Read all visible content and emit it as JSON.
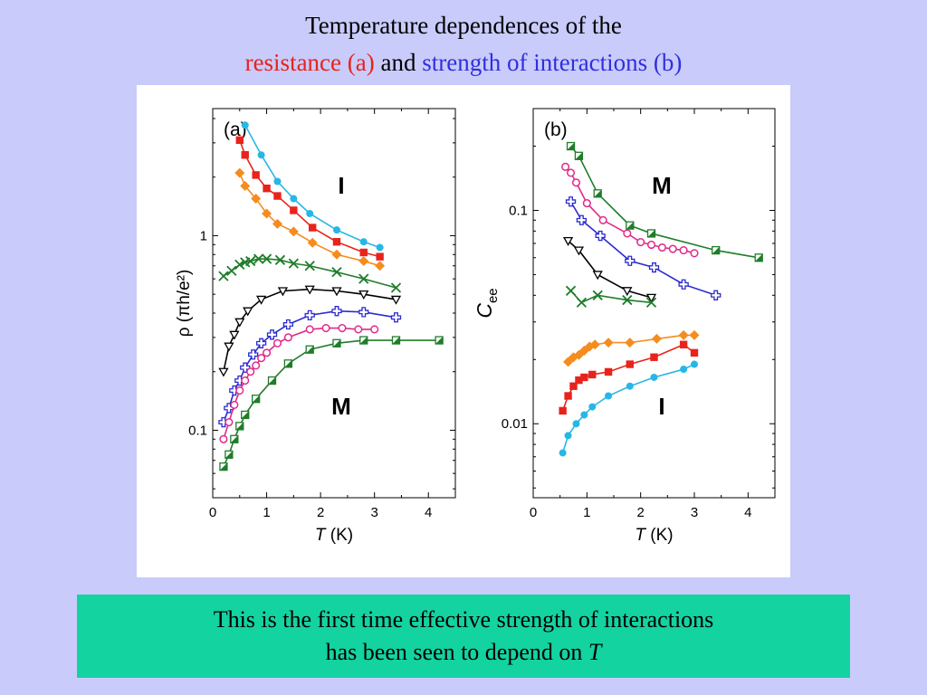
{
  "header": {
    "line1": "Temperature dependences of the",
    "red_part": "resistance (a)",
    "mid_part": "and",
    "blue_part": "strength of interactions (b)"
  },
  "note": {
    "line1": "This is the first time effective strength of interactions",
    "line2_prefix": "has been seen to depend on",
    "line2_var": "T"
  },
  "chart_data": [
    {
      "type": "line",
      "panel_label": "(a)",
      "ylabel": "ρ (πh/e²)",
      "xlabel": "T (K)",
      "yscale": "log",
      "xlim": [
        0,
        4.5
      ],
      "ylim": [
        0.045,
        4.5
      ],
      "xticks": [
        0,
        1,
        2,
        3,
        4
      ],
      "yticks": [
        {
          "value": 0.1,
          "label": "0.1"
        },
        {
          "value": 1,
          "label": "1"
        }
      ],
      "annotations": [
        "I",
        "M"
      ],
      "series": [
        {
          "color": "#27b7e6",
          "marker": "circle",
          "x": [
            0.6,
            0.9,
            1.2,
            1.5,
            1.8,
            2.3,
            2.8,
            3.1
          ],
          "y": [
            3.7,
            2.6,
            1.9,
            1.55,
            1.3,
            1.07,
            0.93,
            0.87
          ]
        },
        {
          "color": "#e8231b",
          "marker": "square",
          "x": [
            0.5,
            0.6,
            0.8,
            1.0,
            1.2,
            1.5,
            1.85,
            2.3,
            2.8,
            3.1
          ],
          "y": [
            3.1,
            2.6,
            2.05,
            1.75,
            1.6,
            1.35,
            1.1,
            0.93,
            0.82,
            0.78
          ]
        },
        {
          "color": "#f58c1e",
          "marker": "diamond",
          "x": [
            0.5,
            0.6,
            0.8,
            1.0,
            1.2,
            1.5,
            1.85,
            2.3,
            2.8,
            3.1
          ],
          "y": [
            2.1,
            1.8,
            1.55,
            1.3,
            1.15,
            1.05,
            0.92,
            0.8,
            0.74,
            0.7
          ]
        },
        {
          "color": "#1f7d2a",
          "marker": "x",
          "x": [
            0.2,
            0.35,
            0.5,
            0.6,
            0.7,
            0.85,
            1.0,
            1.25,
            1.5,
            1.8,
            2.3,
            2.8,
            3.4
          ],
          "y": [
            0.62,
            0.66,
            0.71,
            0.73,
            0.74,
            0.76,
            0.76,
            0.75,
            0.72,
            0.7,
            0.65,
            0.6,
            0.54
          ]
        },
        {
          "color": "#000000",
          "marker": "triangle",
          "x": [
            0.2,
            0.3,
            0.4,
            0.5,
            0.65,
            0.9,
            1.3,
            1.8,
            2.3,
            2.8,
            3.4
          ],
          "y": [
            0.2,
            0.27,
            0.31,
            0.36,
            0.41,
            0.47,
            0.52,
            0.53,
            0.52,
            0.5,
            0.47
          ]
        },
        {
          "color": "#2b2bd0",
          "marker": "cross",
          "x": [
            0.2,
            0.3,
            0.4,
            0.5,
            0.6,
            0.75,
            0.9,
            1.1,
            1.4,
            1.8,
            2.3,
            2.8,
            3.4
          ],
          "y": [
            0.11,
            0.13,
            0.16,
            0.18,
            0.21,
            0.245,
            0.28,
            0.31,
            0.35,
            0.39,
            0.41,
            0.405,
            0.38
          ]
        },
        {
          "color": "#e02a8a",
          "marker": "open-circle",
          "x": [
            0.2,
            0.3,
            0.4,
            0.5,
            0.6,
            0.7,
            0.8,
            0.9,
            1.0,
            1.2,
            1.4,
            1.8,
            2.1,
            2.4,
            2.7,
            3.0
          ],
          "y": [
            0.09,
            0.11,
            0.135,
            0.16,
            0.18,
            0.2,
            0.215,
            0.235,
            0.25,
            0.28,
            0.3,
            0.33,
            0.335,
            0.335,
            0.33,
            0.33
          ]
        },
        {
          "color": "#1f7d2a",
          "marker": "half-square",
          "x": [
            0.2,
            0.3,
            0.4,
            0.5,
            0.6,
            0.8,
            1.1,
            1.4,
            1.8,
            2.3,
            2.8,
            3.4,
            4.2
          ],
          "y": [
            0.065,
            0.075,
            0.09,
            0.105,
            0.12,
            0.145,
            0.18,
            0.22,
            0.26,
            0.28,
            0.29,
            0.29,
            0.29
          ]
        }
      ]
    },
    {
      "type": "line",
      "panel_label": "(b)",
      "ylabel": "Cee",
      "xlabel": "T (K)",
      "yscale": "log",
      "xlim": [
        0,
        4.5
      ],
      "ylim": [
        0.0045,
        0.3
      ],
      "xticks": [
        0,
        1,
        2,
        3,
        4
      ],
      "yticks": [
        {
          "value": 0.01,
          "label": "0.01"
        },
        {
          "value": 0.1,
          "label": "0.1"
        }
      ],
      "annotations": [
        "M",
        "I"
      ],
      "series": [
        {
          "color": "#1f7d2a",
          "marker": "half-square",
          "x": [
            0.7,
            0.85,
            1.2,
            1.8,
            2.2,
            3.4,
            4.2
          ],
          "y": [
            0.2,
            0.18,
            0.12,
            0.085,
            0.078,
            0.065,
            0.06
          ]
        },
        {
          "color": "#e02a8a",
          "marker": "open-circle",
          "x": [
            0.6,
            0.7,
            0.8,
            1.0,
            1.3,
            1.75,
            2.0,
            2.2,
            2.4,
            2.6,
            2.8,
            3.0
          ],
          "y": [
            0.16,
            0.15,
            0.135,
            0.108,
            0.09,
            0.078,
            0.071,
            0.069,
            0.067,
            0.066,
            0.065,
            0.063
          ]
        },
        {
          "color": "#2b2bd0",
          "marker": "cross",
          "x": [
            0.7,
            0.9,
            1.25,
            1.8,
            2.25,
            2.8,
            3.4
          ],
          "y": [
            0.11,
            0.09,
            0.076,
            0.058,
            0.054,
            0.045,
            0.04
          ]
        },
        {
          "color": "#000000",
          "marker": "triangle",
          "x": [
            0.65,
            0.85,
            1.2,
            1.75,
            2.2
          ],
          "y": [
            0.072,
            0.065,
            0.05,
            0.042,
            0.039
          ]
        },
        {
          "color": "#1f7d2a",
          "marker": "x",
          "x": [
            0.7,
            0.9,
            1.2,
            1.75,
            2.2
          ],
          "y": [
            0.042,
            0.037,
            0.04,
            0.038,
            0.037
          ]
        },
        {
          "color": "#f58c1e",
          "marker": "diamond",
          "x": [
            0.65,
            0.75,
            0.85,
            0.95,
            1.05,
            1.15,
            1.4,
            1.8,
            2.3,
            2.8,
            3.0
          ],
          "y": [
            0.0195,
            0.0205,
            0.021,
            0.022,
            0.023,
            0.0235,
            0.024,
            0.024,
            0.025,
            0.026,
            0.026
          ]
        },
        {
          "color": "#e8231b",
          "marker": "square",
          "x": [
            0.55,
            0.65,
            0.75,
            0.85,
            0.95,
            1.1,
            1.4,
            1.8,
            2.25,
            2.8,
            3.0
          ],
          "y": [
            0.0115,
            0.0135,
            0.015,
            0.016,
            0.0165,
            0.017,
            0.0175,
            0.019,
            0.0205,
            0.0235,
            0.0215
          ]
        },
        {
          "color": "#27b7e6",
          "marker": "circle",
          "x": [
            0.55,
            0.65,
            0.8,
            0.95,
            1.1,
            1.4,
            1.8,
            2.25,
            2.8,
            3.0
          ],
          "y": [
            0.0073,
            0.0088,
            0.01,
            0.011,
            0.012,
            0.0135,
            0.015,
            0.0165,
            0.018,
            0.019
          ]
        }
      ]
    }
  ]
}
